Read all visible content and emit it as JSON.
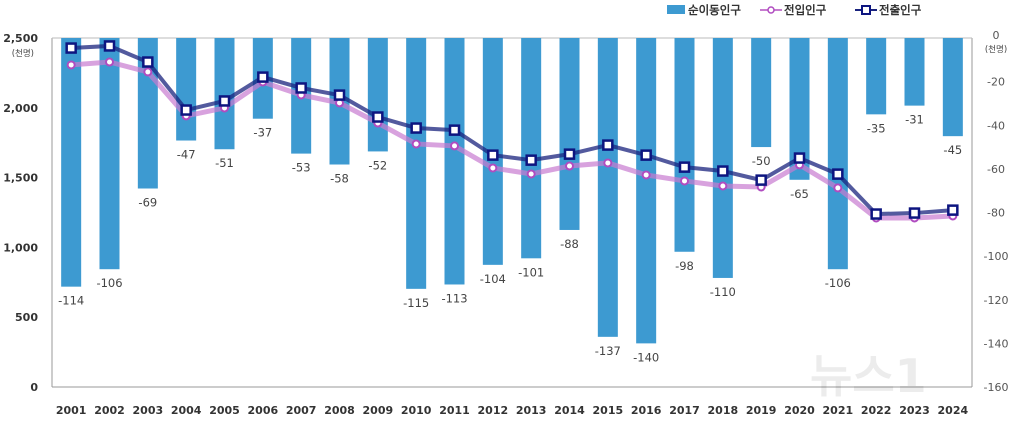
{
  "chart_data": {
    "type": "bar+line",
    "categories": [
      "2001",
      "2002",
      "2003",
      "2004",
      "2005",
      "2006",
      "2007",
      "2008",
      "2009",
      "2010",
      "2011",
      "2012",
      "2013",
      "2014",
      "2015",
      "2016",
      "2017",
      "2018",
      "2019",
      "2020",
      "2021",
      "2022",
      "2023",
      "2024"
    ],
    "series": [
      {
        "name": "순이동인구",
        "type": "bar",
        "axis": "right",
        "color": "#3d9ad1",
        "values": [
          -114,
          -106,
          -69,
          -47,
          -51,
          -37,
          -53,
          -58,
          -52,
          -115,
          -113,
          -104,
          -101,
          -88,
          -137,
          -140,
          -98,
          -110,
          -50,
          -65,
          -106,
          -35,
          -31,
          -45
        ],
        "labels": [
          "-114",
          "-106",
          "-69",
          "-47",
          "-51",
          "-37",
          "-53",
          "-58",
          "-52",
          "-115",
          "-113",
          "-104",
          "-101",
          "-88",
          "-137",
          "-140",
          "-98",
          "-110",
          "-50",
          "-65",
          "-106",
          "-35",
          "-31",
          "-45"
        ]
      },
      {
        "name": "전입인구",
        "type": "line",
        "axis": "left",
        "color": "#c77bd0",
        "values": [
          2307,
          2328,
          2257,
          1942,
          1999,
          2185,
          2092,
          2035,
          1891,
          1741,
          1727,
          1569,
          1526,
          1583,
          1605,
          1519,
          1476,
          1440,
          1433,
          1591,
          1426,
          1211,
          1211,
          1225
        ]
      },
      {
        "name": "전출인구",
        "type": "line",
        "axis": "left",
        "color": "#1a237e",
        "values": [
          2428,
          2443,
          2328,
          1984,
          2049,
          2220,
          2142,
          2091,
          1934,
          1855,
          1840,
          1661,
          1625,
          1668,
          1733,
          1661,
          1575,
          1547,
          1482,
          1640,
          1525,
          1239,
          1246,
          1267
        ]
      }
    ],
    "left_axis": {
      "range": [
        0,
        2500
      ],
      "ticks": [
        "0",
        "500",
        "1,000",
        "1,500",
        "2,000",
        "2,500"
      ],
      "unit": "(천명)"
    },
    "right_axis": {
      "range": [
        -160,
        0
      ],
      "ticks": [
        "0",
        "-20",
        "-40",
        "-60",
        "-80",
        "-100",
        "-120",
        "-140",
        "-160"
      ],
      "unit": "(천명)"
    },
    "legend": {
      "placement": "top-right",
      "entries": [
        "순이동인구",
        "전입인구",
        "전출인구"
      ]
    },
    "grid": false
  },
  "watermark": "뉴스1"
}
